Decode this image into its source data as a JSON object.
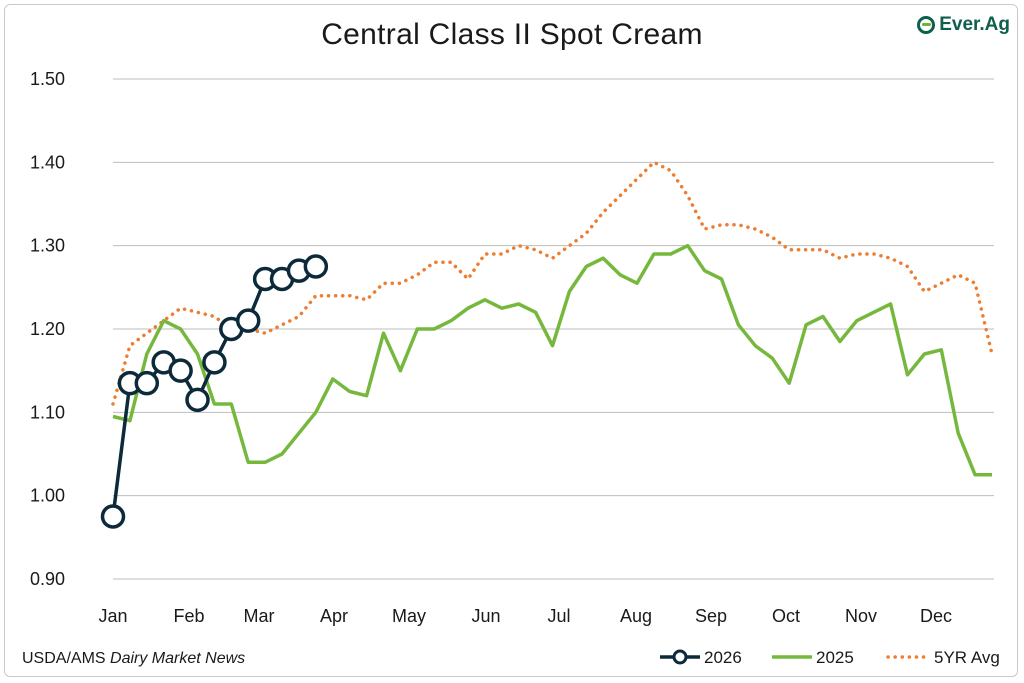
{
  "logo_text": "Ever.Ag",
  "source": {
    "prefix": "USDA/AMS ",
    "italic": "Dairy Market News"
  },
  "colors": {
    "y2026": "#0d2a3a",
    "y2025": "#76b83e",
    "avg5": "#ec7d31",
    "grid": "#bdbdbd"
  },
  "chart_data": {
    "type": "line",
    "title": "Central Class II Spot Cream",
    "xlabel": "",
    "ylabel": "",
    "ylim": [
      0.9,
      1.5
    ],
    "y_ticks": [
      "1.50",
      "1.40",
      "1.30",
      "1.20",
      "1.10",
      "1.00",
      "0.90"
    ],
    "x_ticks": [
      "Jan",
      "Feb",
      "Mar",
      "Apr",
      "May",
      "Jun",
      "Jul",
      "Aug",
      "Sep",
      "Oct",
      "Nov",
      "Dec"
    ],
    "grid": "horizontal",
    "legend_position": "bottom-right",
    "x_unit": "week of year (1-53)",
    "series": [
      {
        "name": "2026",
        "style": "solid line with open circle markers",
        "x": [
          1,
          2,
          3,
          4,
          5,
          6,
          7,
          8,
          9,
          10,
          11,
          12,
          13
        ],
        "y": [
          0.975,
          1.135,
          1.135,
          1.16,
          1.15,
          1.115,
          1.16,
          1.2,
          1.21,
          1.26,
          1.26,
          1.27,
          1.275
        ]
      },
      {
        "name": "2025",
        "style": "solid line",
        "x": [
          1,
          2,
          3,
          4,
          5,
          6,
          7,
          8,
          9,
          10,
          11,
          12,
          13,
          14,
          15,
          16,
          17,
          18,
          19,
          20,
          21,
          22,
          23,
          24,
          25,
          26,
          27,
          28,
          29,
          30,
          31,
          32,
          33,
          34,
          35,
          36,
          37,
          38,
          39,
          40,
          41,
          42,
          43,
          44,
          45,
          46,
          47,
          48,
          49,
          50,
          51,
          52,
          53
        ],
        "y": [
          1.095,
          1.09,
          1.17,
          1.21,
          1.2,
          1.17,
          1.11,
          1.11,
          1.04,
          1.04,
          1.05,
          1.075,
          1.1,
          1.14,
          1.125,
          1.12,
          1.195,
          1.15,
          1.2,
          1.2,
          1.21,
          1.225,
          1.235,
          1.225,
          1.23,
          1.22,
          1.18,
          1.245,
          1.275,
          1.285,
          1.265,
          1.255,
          1.29,
          1.29,
          1.3,
          1.27,
          1.26,
          1.205,
          1.18,
          1.165,
          1.135,
          1.205,
          1.215,
          1.185,
          1.21,
          1.22,
          1.23,
          1.145,
          1.17,
          1.175,
          1.075,
          1.025,
          1.025
        ]
      },
      {
        "name": "5YR Avg",
        "style": "dotted line",
        "x": [
          1,
          2,
          3,
          4,
          5,
          6,
          7,
          8,
          9,
          10,
          11,
          12,
          13,
          14,
          15,
          16,
          17,
          18,
          19,
          20,
          21,
          22,
          23,
          24,
          25,
          26,
          27,
          28,
          29,
          30,
          31,
          32,
          33,
          34,
          35,
          36,
          37,
          38,
          39,
          40,
          41,
          42,
          43,
          44,
          45,
          46,
          47,
          48,
          49,
          50,
          51,
          52,
          53
        ],
        "y": [
          1.11,
          1.18,
          1.195,
          1.21,
          1.225,
          1.22,
          1.215,
          1.2,
          1.2,
          1.195,
          1.205,
          1.215,
          1.24,
          1.24,
          1.24,
          1.235,
          1.255,
          1.255,
          1.265,
          1.28,
          1.28,
          1.26,
          1.29,
          1.29,
          1.3,
          1.295,
          1.285,
          1.3,
          1.315,
          1.34,
          1.36,
          1.38,
          1.4,
          1.39,
          1.36,
          1.32,
          1.325,
          1.325,
          1.32,
          1.31,
          1.295,
          1.295,
          1.295,
          1.285,
          1.29,
          1.29,
          1.285,
          1.275,
          1.245,
          1.255,
          1.265,
          1.255,
          1.17
        ]
      }
    ]
  }
}
